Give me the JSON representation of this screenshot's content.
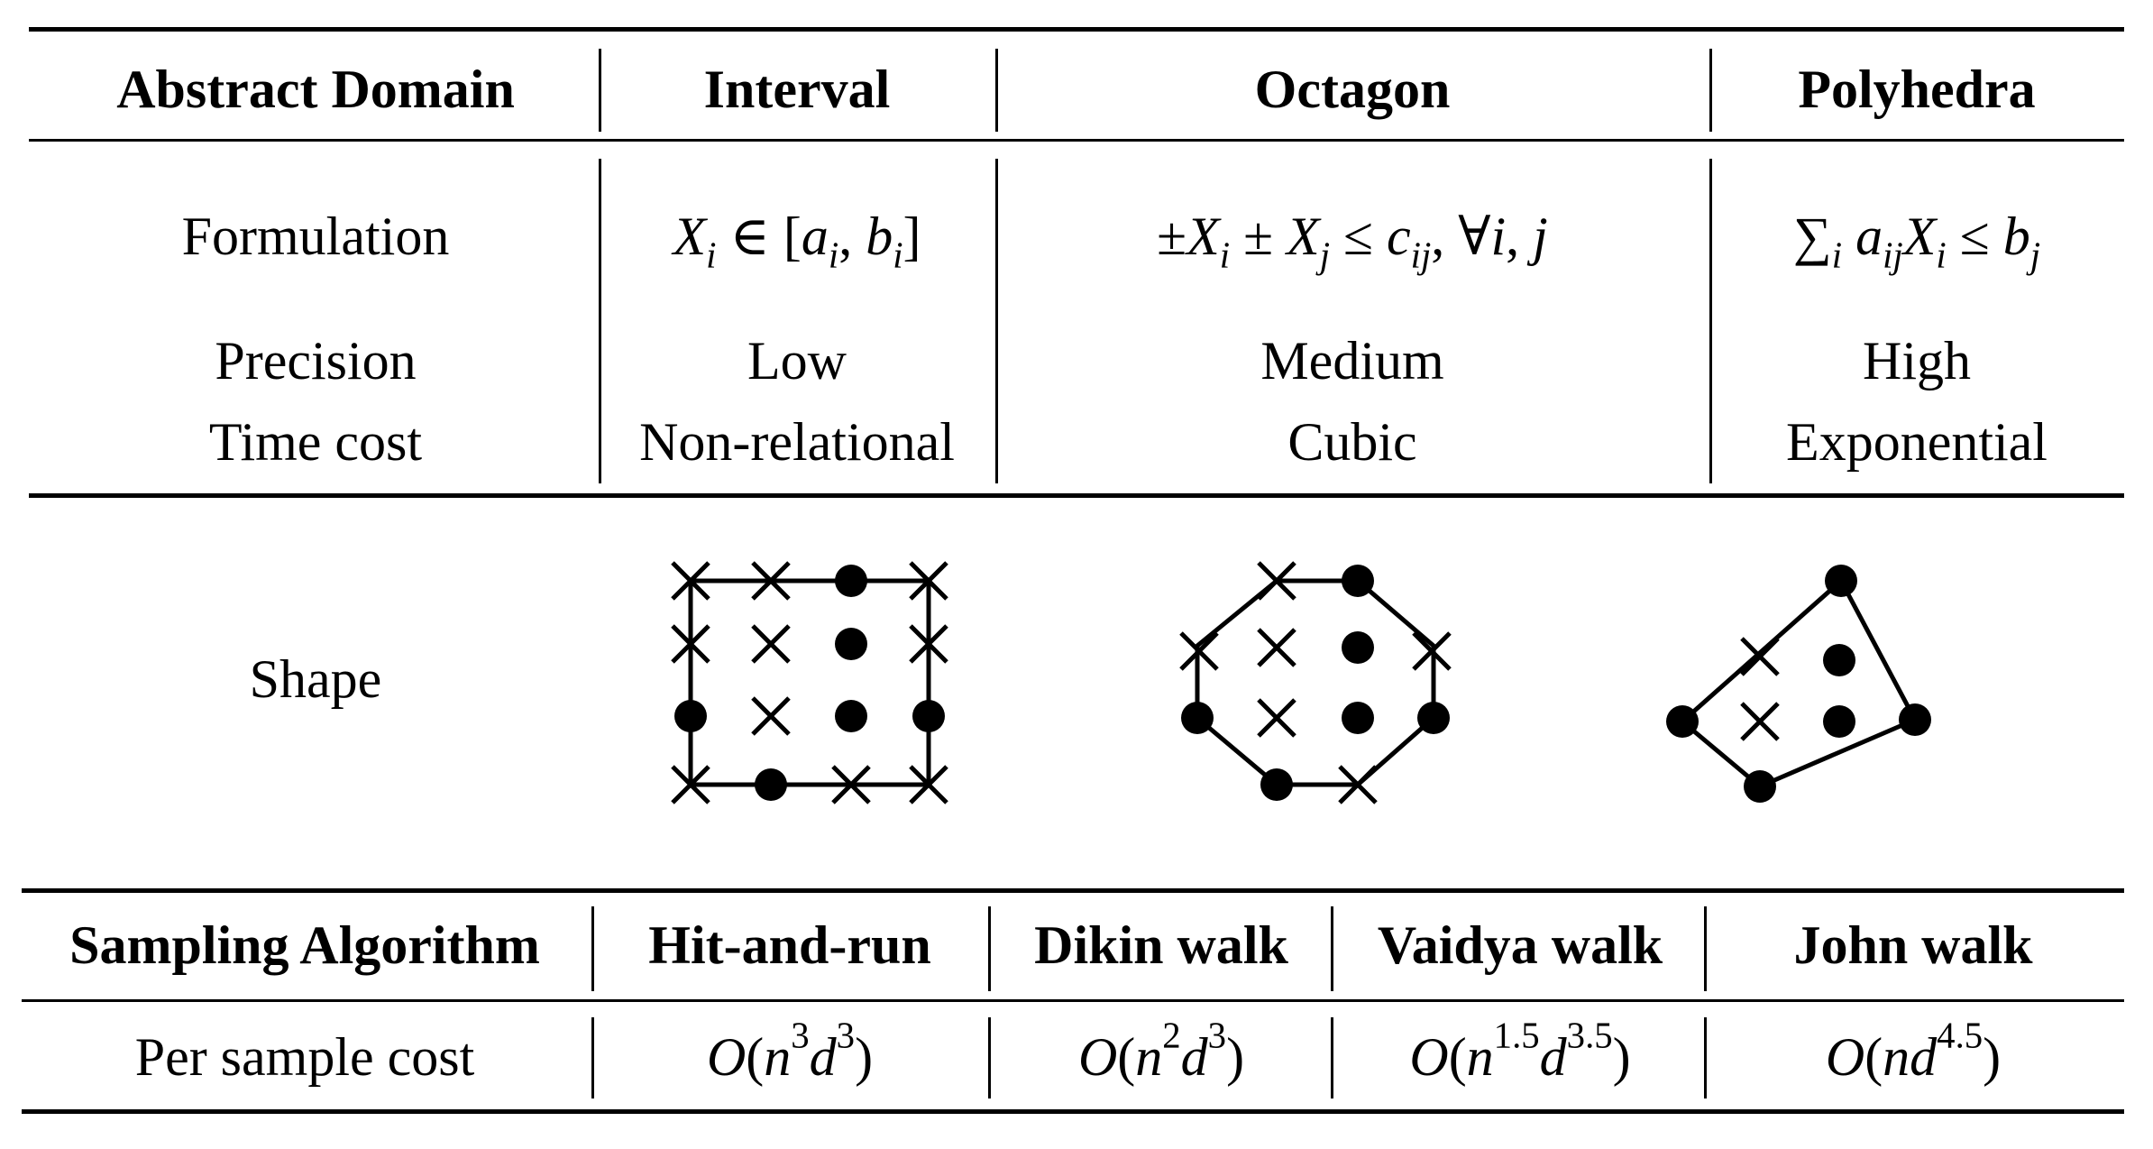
{
  "top_table": {
    "header": {
      "row_label": "Abstract Domain",
      "interval": "Interval",
      "octagon": "Octagon",
      "polyhedra": "Polyhedra"
    },
    "rows": {
      "formulation_label": "Formulation",
      "precision_label": "Precision",
      "time_cost_label": "Time cost",
      "shape_label": "Shape"
    },
    "interval": {
      "precision": "Low",
      "time_cost": "Non-relational"
    },
    "octagon": {
      "precision": "Medium",
      "time_cost": "Cubic"
    },
    "polyhedra": {
      "precision": "High",
      "time_cost": "Exponential"
    }
  },
  "bottom_table": {
    "header": {
      "row_label": "Sampling Algorithm",
      "hit_and_run": "Hit-and-run",
      "dikin": "Dikin walk",
      "vaidya": "Vaidya walk",
      "john": "John walk"
    },
    "row_label": "Per sample cost"
  }
}
